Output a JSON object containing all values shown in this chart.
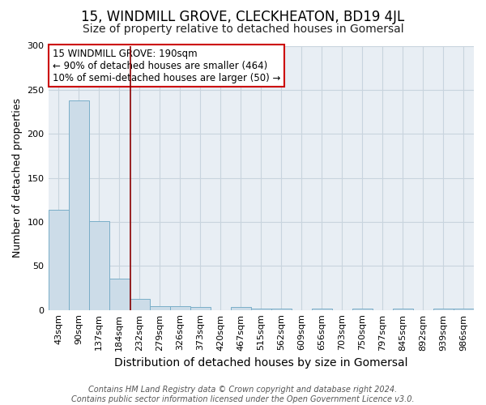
{
  "title": "15, WINDMILL GROVE, CLECKHEATON, BD19 4JL",
  "subtitle": "Size of property relative to detached houses in Gomersal",
  "xlabel": "Distribution of detached houses by size in Gomersal",
  "ylabel": "Number of detached properties",
  "footer1": "Contains HM Land Registry data © Crown copyright and database right 2024.",
  "footer2": "Contains public sector information licensed under the Open Government Licence v3.0.",
  "annotation_line1": "15 WINDMILL GROVE: 190sqm",
  "annotation_line2": "← 90% of detached houses are smaller (464)",
  "annotation_line3": "10% of semi-detached houses are larger (50) →",
  "bar_categories": [
    "43sqm",
    "90sqm",
    "137sqm",
    "184sqm",
    "232sqm",
    "279sqm",
    "326sqm",
    "373sqm",
    "420sqm",
    "467sqm",
    "515sqm",
    "562sqm",
    "609sqm",
    "656sqm",
    "703sqm",
    "750sqm",
    "797sqm",
    "845sqm",
    "892sqm",
    "939sqm",
    "986sqm"
  ],
  "bar_values": [
    114,
    238,
    101,
    36,
    13,
    4,
    4,
    3,
    0,
    3,
    2,
    2,
    0,
    2,
    0,
    2,
    0,
    2,
    0,
    2,
    2
  ],
  "bar_color": "#ccdce8",
  "bar_edge_color": "#7aaec8",
  "vline_color": "#8b0000",
  "vline_x": 3.55,
  "ylim": [
    0,
    300
  ],
  "yticks": [
    0,
    50,
    100,
    150,
    200,
    250,
    300
  ],
  "grid_color": "#c8d4de",
  "bg_color": "#e8eef4",
  "annotation_box_color": "#cc0000",
  "title_fontsize": 12,
  "subtitle_fontsize": 10,
  "ylabel_fontsize": 9,
  "xlabel_fontsize": 10,
  "tick_fontsize": 8,
  "footer_fontsize": 7,
  "ann_fontsize": 8.5
}
